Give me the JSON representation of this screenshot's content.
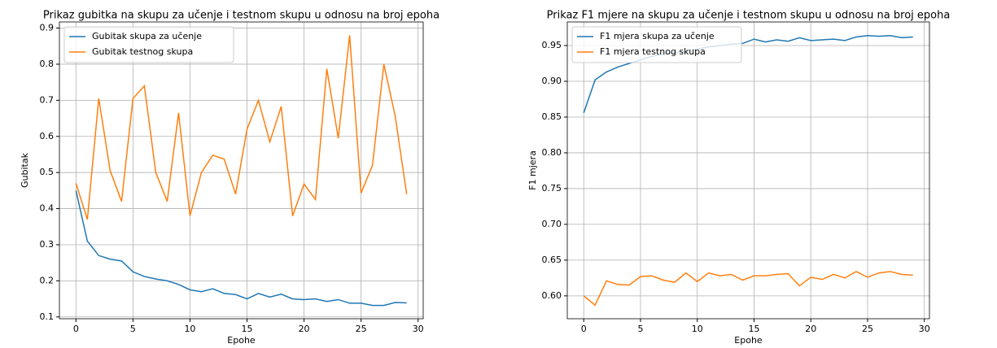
{
  "chart_data": [
    {
      "type": "line",
      "title": "Prikaz gubitka na skupu za učenje i testnom skupu u odnosu na broj epoha",
      "xlabel": "Epohe",
      "ylabel": "Gubitak",
      "x": [
        0,
        1,
        2,
        3,
        4,
        5,
        6,
        7,
        8,
        9,
        10,
        11,
        12,
        13,
        14,
        15,
        16,
        17,
        18,
        19,
        20,
        21,
        22,
        23,
        24,
        25,
        26,
        27,
        28,
        29
      ],
      "series": [
        {
          "name": "Gubitak skupa za učenje",
          "color": "#1f77b4",
          "values": [
            0.45,
            0.31,
            0.27,
            0.26,
            0.255,
            0.225,
            0.212,
            0.205,
            0.2,
            0.19,
            0.175,
            0.17,
            0.178,
            0.165,
            0.162,
            0.15,
            0.165,
            0.155,
            0.163,
            0.15,
            0.148,
            0.15,
            0.143,
            0.148,
            0.138,
            0.138,
            0.132,
            0.132,
            0.14,
            0.139
          ]
        },
        {
          "name": "Gubitak testnog skupa",
          "color": "#ff7f0e",
          "values": [
            0.47,
            0.37,
            0.705,
            0.505,
            0.42,
            0.705,
            0.74,
            0.5,
            0.42,
            0.665,
            0.38,
            0.5,
            0.548,
            0.537,
            0.44,
            0.62,
            0.7,
            0.585,
            0.683,
            0.38,
            0.468,
            0.425,
            0.787,
            0.595,
            0.88,
            0.443,
            0.52,
            0.8,
            0.655,
            0.44
          ]
        }
      ],
      "xlim": [
        -1.45,
        30.45
      ],
      "xticks": [
        0,
        5,
        10,
        15,
        20,
        25,
        30
      ],
      "ylim": [
        0.095,
        0.917
      ],
      "yticks": [
        0.1,
        0.2,
        0.3,
        0.4,
        0.5,
        0.6,
        0.7,
        0.8,
        0.9
      ],
      "grid": true,
      "legend": "upper left"
    },
    {
      "type": "line",
      "title": "Prikaz F1 mjere na skupu za učenje i testnom skupu u odnosu na broj epoha",
      "xlabel": "Epohe",
      "ylabel": "F1 mjera",
      "x": [
        0,
        1,
        2,
        3,
        4,
        5,
        6,
        7,
        8,
        9,
        10,
        11,
        12,
        13,
        14,
        15,
        16,
        17,
        18,
        19,
        20,
        21,
        22,
        23,
        24,
        25,
        26,
        27,
        28,
        29
      ],
      "series": [
        {
          "name": "F1 mjera skupa za učenje",
          "color": "#1f77b4",
          "values": [
            0.856,
            0.902,
            0.913,
            0.92,
            0.925,
            0.93,
            0.935,
            0.938,
            0.94,
            0.942,
            0.945,
            0.948,
            0.95,
            0.952,
            0.953,
            0.959,
            0.955,
            0.958,
            0.956,
            0.961,
            0.957,
            0.958,
            0.959,
            0.957,
            0.962,
            0.964,
            0.963,
            0.964,
            0.961,
            0.962
          ]
        },
        {
          "name": "F1 mjera testnog skupa",
          "color": "#ff7f0e",
          "values": [
            0.6,
            0.587,
            0.621,
            0.616,
            0.615,
            0.627,
            0.628,
            0.622,
            0.619,
            0.632,
            0.62,
            0.632,
            0.628,
            0.63,
            0.622,
            0.628,
            0.628,
            0.63,
            0.631,
            0.614,
            0.626,
            0.623,
            0.63,
            0.625,
            0.634,
            0.626,
            0.632,
            0.634,
            0.63,
            0.629
          ]
        }
      ],
      "xlim": [
        -1.45,
        30.45
      ],
      "xticks": [
        0,
        5,
        10,
        15,
        20,
        25,
        30
      ],
      "ylim": [
        0.568,
        0.983
      ],
      "yticks": [
        {
          "value": 0.6,
          "label": "0.60"
        },
        {
          "value": 0.65,
          "label": "0.65"
        },
        {
          "value": 0.7,
          "label": "0.70"
        },
        {
          "value": 0.75,
          "label": "0.75"
        },
        {
          "value": 0.8,
          "label": "0.80"
        },
        {
          "value": 0.85,
          "label": "0.85"
        },
        {
          "value": 0.9,
          "label": "0.90"
        },
        {
          "value": 0.95,
          "label": "0.95"
        }
      ],
      "grid": true,
      "legend": "upper left"
    }
  ]
}
